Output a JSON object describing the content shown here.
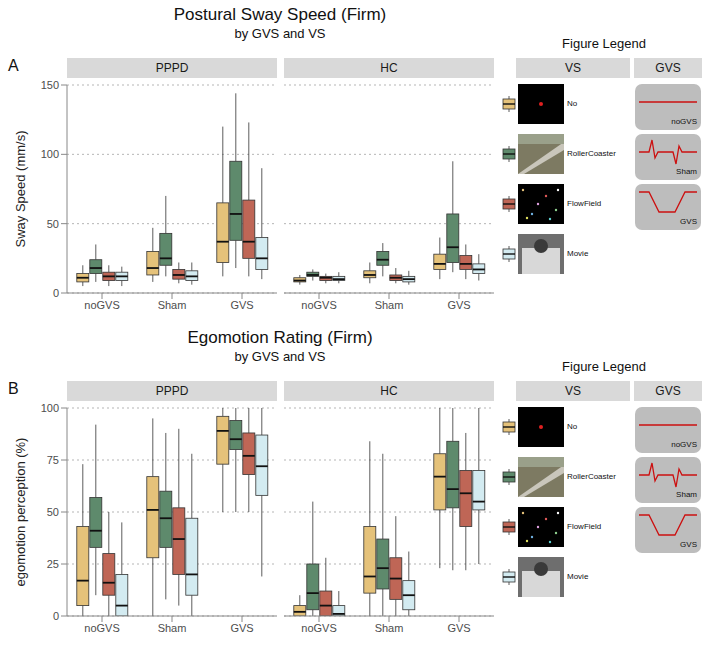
{
  "chart_data": [
    {
      "type": "boxplot",
      "panel_label": "A",
      "title": "Postural Sway Speed (Firm)",
      "subtitle": "by GVS and VS",
      "y_label": "Sway Speed (mm/s)",
      "facets": [
        "PPPD",
        "HC"
      ],
      "categories": [
        "noGVS",
        "Sham",
        "GVS"
      ],
      "ylim": [
        0,
        150
      ],
      "yticks": [
        0,
        50,
        100,
        150
      ],
      "grid": true,
      "legend": "right",
      "legend_title": "Figure Legend",
      "legend_headers": [
        "VS",
        "GVS"
      ],
      "series": [
        {
          "name": "No",
          "color": "#E5C27A",
          "values": {
            "PPPD": [
              [
                5,
                8,
                11,
                14,
                20
              ],
              [
                8,
                13,
                18,
                30,
                47
              ],
              [
                12,
                22,
                37,
                65,
                120
              ]
            ],
            "HC": [
              [
                6,
                8,
                9,
                11,
                13
              ],
              [
                7,
                11,
                13,
                16,
                22
              ],
              [
                10,
                17,
                21,
                28,
                40
              ]
            ]
          }
        },
        {
          "name": "RollerCoaster",
          "color": "#5E8A6C",
          "values": {
            "PPPD": [
              [
                8,
                14,
                18,
                24,
                35
              ],
              [
                12,
                20,
                25,
                43,
                70
              ],
              [
                18,
                38,
                57,
                95,
                144
              ]
            ],
            "HC": [
              [
                9,
                12,
                13,
                15,
                17
              ],
              [
                12,
                20,
                24,
                30,
                36
              ],
              [
                15,
                22,
                33,
                57,
                95
              ]
            ]
          }
        },
        {
          "name": "FlowField",
          "color": "#BF6656",
          "values": {
            "PPPD": [
              [
                5,
                9,
                12,
                15,
                20
              ],
              [
                7,
                10,
                13,
                17,
                22
              ],
              [
                12,
                25,
                37,
                67,
                123
              ]
            ],
            "HC": [
              [
                7,
                9,
                11,
                12,
                14
              ],
              [
                7,
                9,
                11,
                13,
                18
              ],
              [
                10,
                17,
                21,
                27,
                35
              ]
            ]
          }
        },
        {
          "name": "Movie",
          "color": "#D3EBF1",
          "values": {
            "PPPD": [
              [
                5,
                9,
                12,
                15,
                19
              ],
              [
                6,
                9,
                12,
                16,
                22
              ],
              [
                10,
                17,
                25,
                40,
                90
              ]
            ],
            "HC": [
              [
                7,
                9,
                10,
                12,
                15
              ],
              [
                6,
                8,
                10,
                12,
                16
              ],
              [
                9,
                14,
                17,
                21,
                28
              ]
            ]
          }
        }
      ]
    },
    {
      "type": "boxplot",
      "panel_label": "B",
      "title": "Egomotion Rating (Firm)",
      "subtitle": "by GVS and VS",
      "y_label": "egomotion perception (%)",
      "facets": [
        "PPPD",
        "HC"
      ],
      "categories": [
        "noGVS",
        "Sham",
        "GVS"
      ],
      "ylim": [
        0,
        100
      ],
      "yticks": [
        0,
        25,
        50,
        75,
        100
      ],
      "grid": true,
      "legend": "right",
      "legend_title": "Figure Legend",
      "legend_headers": [
        "VS",
        "GVS"
      ],
      "series": [
        {
          "name": "No",
          "color": "#E5C27A",
          "values": {
            "PPPD": [
              [
                0,
                5,
                17,
                43,
                73
              ],
              [
                0,
                28,
                51,
                67,
                95
              ],
              [
                50,
                73,
                89,
                96,
                100
              ]
            ],
            "HC": [
              [
                0,
                0,
                2,
                5,
                10
              ],
              [
                0,
                11,
                19,
                43,
                84
              ],
              [
                23,
                51,
                67,
                78,
                100
              ]
            ]
          }
        },
        {
          "name": "RollerCoaster",
          "color": "#5E8A6C",
          "values": {
            "PPPD": [
              [
                10,
                33,
                41,
                57,
                92
              ],
              [
                8,
                33,
                47,
                60,
                88
              ],
              [
                50,
                80,
                85,
                94,
                100
              ]
            ],
            "HC": [
              [
                0,
                3,
                11,
                25,
                55
              ],
              [
                0,
                13,
                23,
                37,
                78
              ],
              [
                22,
                52,
                61,
                84,
                100
              ]
            ]
          }
        },
        {
          "name": "FlowField",
          "color": "#BF6656",
          "values": {
            "PPPD": [
              [
                0,
                10,
                16,
                30,
                50
              ],
              [
                5,
                20,
                37,
                52,
                90
              ],
              [
                50,
                68,
                77,
                88,
                100
              ]
            ],
            "HC": [
              [
                0,
                0,
                5,
                12,
                28
              ],
              [
                0,
                8,
                18,
                28,
                48
              ],
              [
                22,
                43,
                59,
                70,
                88
              ]
            ]
          }
        },
        {
          "name": "Movie",
          "color": "#D3EBF1",
          "values": {
            "PPPD": [
              [
                0,
                0,
                5,
                20,
                45
              ],
              [
                0,
                10,
                20,
                47,
                78
              ],
              [
                19,
                58,
                72,
                87,
                100
              ]
            ],
            "HC": [
              [
                0,
                0,
                1,
                5,
                12
              ],
              [
                0,
                3,
                10,
                17,
                31
              ],
              [
                25,
                51,
                55,
                70,
                100
              ]
            ]
          }
        }
      ]
    }
  ]
}
